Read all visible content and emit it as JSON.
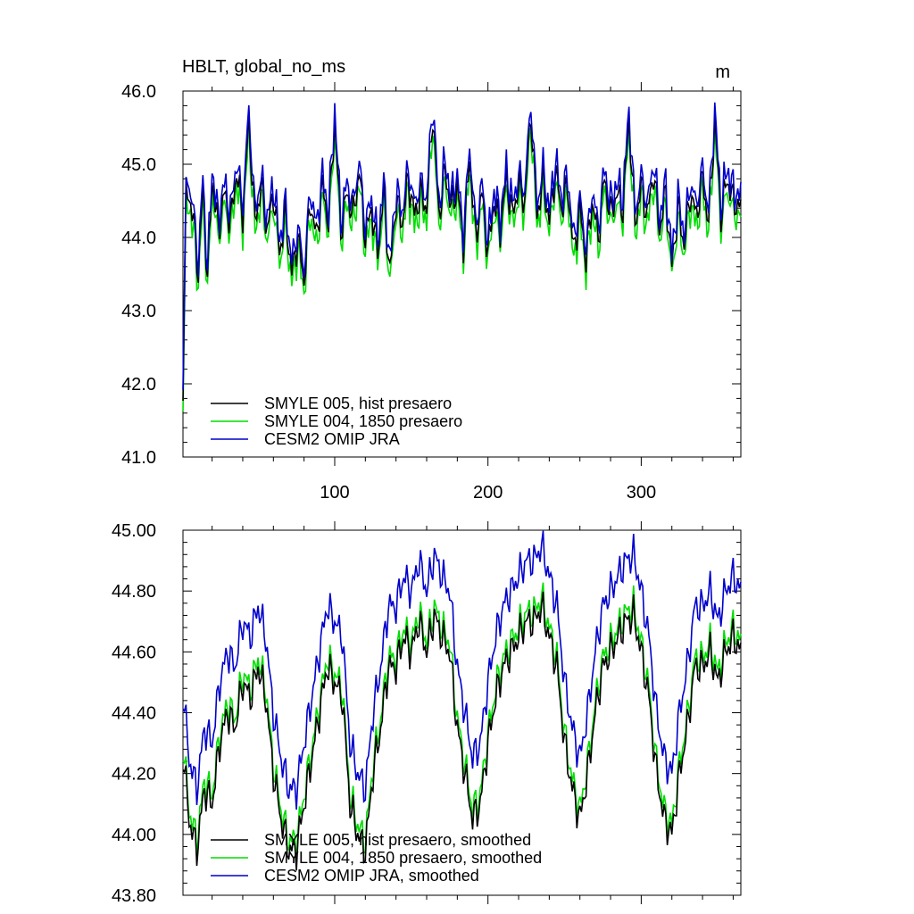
{
  "header": {
    "title_left": "HBLT, global_no_ms",
    "title_right": "m"
  },
  "colors": {
    "smyle005": "#000000",
    "smyle004": "#00dd00",
    "omip": "#0000cc"
  },
  "chart_data": [
    {
      "type": "line",
      "title": "HBLT, global_no_ms",
      "units": "m",
      "xlim": [
        1,
        365
      ],
      "ylim": [
        41.0,
        46.0
      ],
      "xticks": [
        100,
        200,
        300
      ],
      "xticklabels": [
        "100",
        "200",
        "300"
      ],
      "yticks": [
        41.0,
        42.0,
        43.0,
        44.0,
        45.0,
        46.0
      ],
      "yticklabels": [
        "41.0",
        "42.0",
        "43.0",
        "44.0",
        "45.0",
        "46.0"
      ],
      "legend_position": "bottom-left",
      "series": [
        {
          "name": "SMYLE 005, hist presaero",
          "color": "#000000",
          "x": [
            1,
            3,
            5,
            8,
            11,
            14,
            17,
            20,
            24,
            28,
            32,
            36,
            40,
            44,
            48,
            52,
            56,
            60,
            64,
            68,
            72,
            76,
            80,
            84,
            88,
            92,
            96,
            100,
            104,
            108,
            112,
            116,
            120,
            124,
            128,
            132,
            136,
            140,
            144,
            148,
            152,
            156,
            160,
            164,
            168,
            172,
            176,
            180,
            184,
            188,
            192,
            196,
            200,
            204,
            208,
            212,
            216,
            220,
            224,
            228,
            232,
            236,
            240,
            244,
            248,
            252,
            256,
            260,
            264,
            268,
            272,
            276,
            280,
            284,
            288,
            292,
            296,
            300,
            304,
            308,
            312,
            316,
            320,
            324,
            328,
            332,
            336,
            340,
            344,
            348,
            352,
            356,
            360,
            365
          ],
          "values": [
            42.0,
            44.5,
            44.6,
            44.2,
            43.5,
            44.7,
            43.4,
            44.8,
            44.1,
            44.6,
            44.2,
            44.9,
            44.3,
            45.6,
            44.2,
            44.7,
            44.1,
            44.6,
            43.8,
            44.3,
            43.5,
            44.0,
            43.4,
            44.5,
            44.0,
            44.7,
            44.2,
            45.6,
            44.1,
            44.6,
            44.3,
            44.9,
            44.0,
            44.4,
            43.8,
            44.6,
            43.5,
            44.5,
            44.2,
            44.8,
            44.3,
            44.6,
            44.4,
            45.7,
            44.3,
            44.9,
            44.4,
            44.7,
            43.9,
            45.1,
            44.0,
            44.6,
            43.8,
            44.5,
            44.1,
            44.8,
            44.3,
            44.7,
            44.5,
            45.7,
            44.3,
            44.8,
            44.2,
            44.9,
            44.4,
            44.7,
            43.8,
            44.4,
            43.7,
            44.5,
            44.0,
            44.8,
            44.3,
            44.6,
            44.4,
            45.6,
            44.2,
            44.7,
            44.3,
            44.9,
            44.1,
            44.6,
            43.6,
            44.4,
            43.9,
            44.6,
            44.3,
            44.8,
            44.2,
            45.6,
            44.3,
            44.8,
            44.5,
            44.4
          ],
          "y_offset": 0.0
        },
        {
          "name": "SMYLE 004, 1850 presaero",
          "color": "#00dd00",
          "values_offset_from_smyle005": -0.15
        },
        {
          "name": "CESM2 OMIP JRA",
          "color": "#0000cc",
          "values_offset_from_smyle005": 0.15
        }
      ]
    },
    {
      "type": "line",
      "title": "",
      "xlim": [
        1,
        365
      ],
      "ylim": [
        43.8,
        45.0
      ],
      "xticks": [
        100,
        200,
        300
      ],
      "yticks": [
        43.8,
        44.0,
        44.2,
        44.4,
        44.6,
        44.8,
        45.0
      ],
      "yticklabels": [
        "43.80",
        "44.00",
        "44.20",
        "44.40",
        "44.60",
        "44.80",
        "45.00"
      ],
      "legend_position": "bottom-left",
      "series": [
        {
          "name": "SMYLE 005, hist presaero, smoothed",
          "color": "#000000",
          "x": [
            1,
            5,
            10,
            15,
            20,
            25,
            30,
            35,
            40,
            45,
            50,
            55,
            60,
            65,
            70,
            75,
            80,
            85,
            90,
            95,
            100,
            105,
            110,
            115,
            120,
            125,
            130,
            135,
            140,
            145,
            150,
            155,
            160,
            165,
            170,
            175,
            180,
            185,
            190,
            195,
            200,
            205,
            210,
            215,
            220,
            225,
            230,
            235,
            240,
            245,
            250,
            255,
            260,
            265,
            270,
            275,
            280,
            285,
            290,
            295,
            300,
            305,
            310,
            315,
            320,
            325,
            330,
            335,
            340,
            345,
            350,
            355,
            360,
            365
          ],
          "values": [
            44.27,
            44.05,
            43.95,
            44.15,
            44.1,
            44.3,
            44.4,
            44.35,
            44.5,
            44.45,
            44.55,
            44.45,
            44.2,
            44.05,
            43.95,
            43.95,
            44.1,
            44.25,
            44.4,
            44.55,
            44.5,
            44.45,
            44.1,
            44.0,
            43.95,
            44.2,
            44.35,
            44.55,
            44.55,
            44.65,
            44.6,
            44.7,
            44.6,
            44.72,
            44.65,
            44.6,
            44.35,
            44.2,
            44.05,
            44.1,
            44.3,
            44.45,
            44.55,
            44.6,
            44.65,
            44.7,
            44.7,
            44.75,
            44.65,
            44.55,
            44.3,
            44.15,
            44.05,
            44.2,
            44.4,
            44.55,
            44.6,
            44.65,
            44.7,
            44.72,
            44.6,
            44.45,
            44.2,
            44.05,
            44.0,
            44.2,
            44.35,
            44.55,
            44.55,
            44.6,
            44.5,
            44.6,
            44.65,
            44.6
          ],
          "y_offset": 0.0
        },
        {
          "name": "SMYLE 004, 1850 presaero, smoothed",
          "color": "#00dd00",
          "values_offset_from_smyle005": 0.03
        },
        {
          "name": "CESM2 OMIP JRA, smoothed",
          "color": "#0000cc",
          "values_offset_from_smyle005": 0.2
        }
      ]
    }
  ]
}
